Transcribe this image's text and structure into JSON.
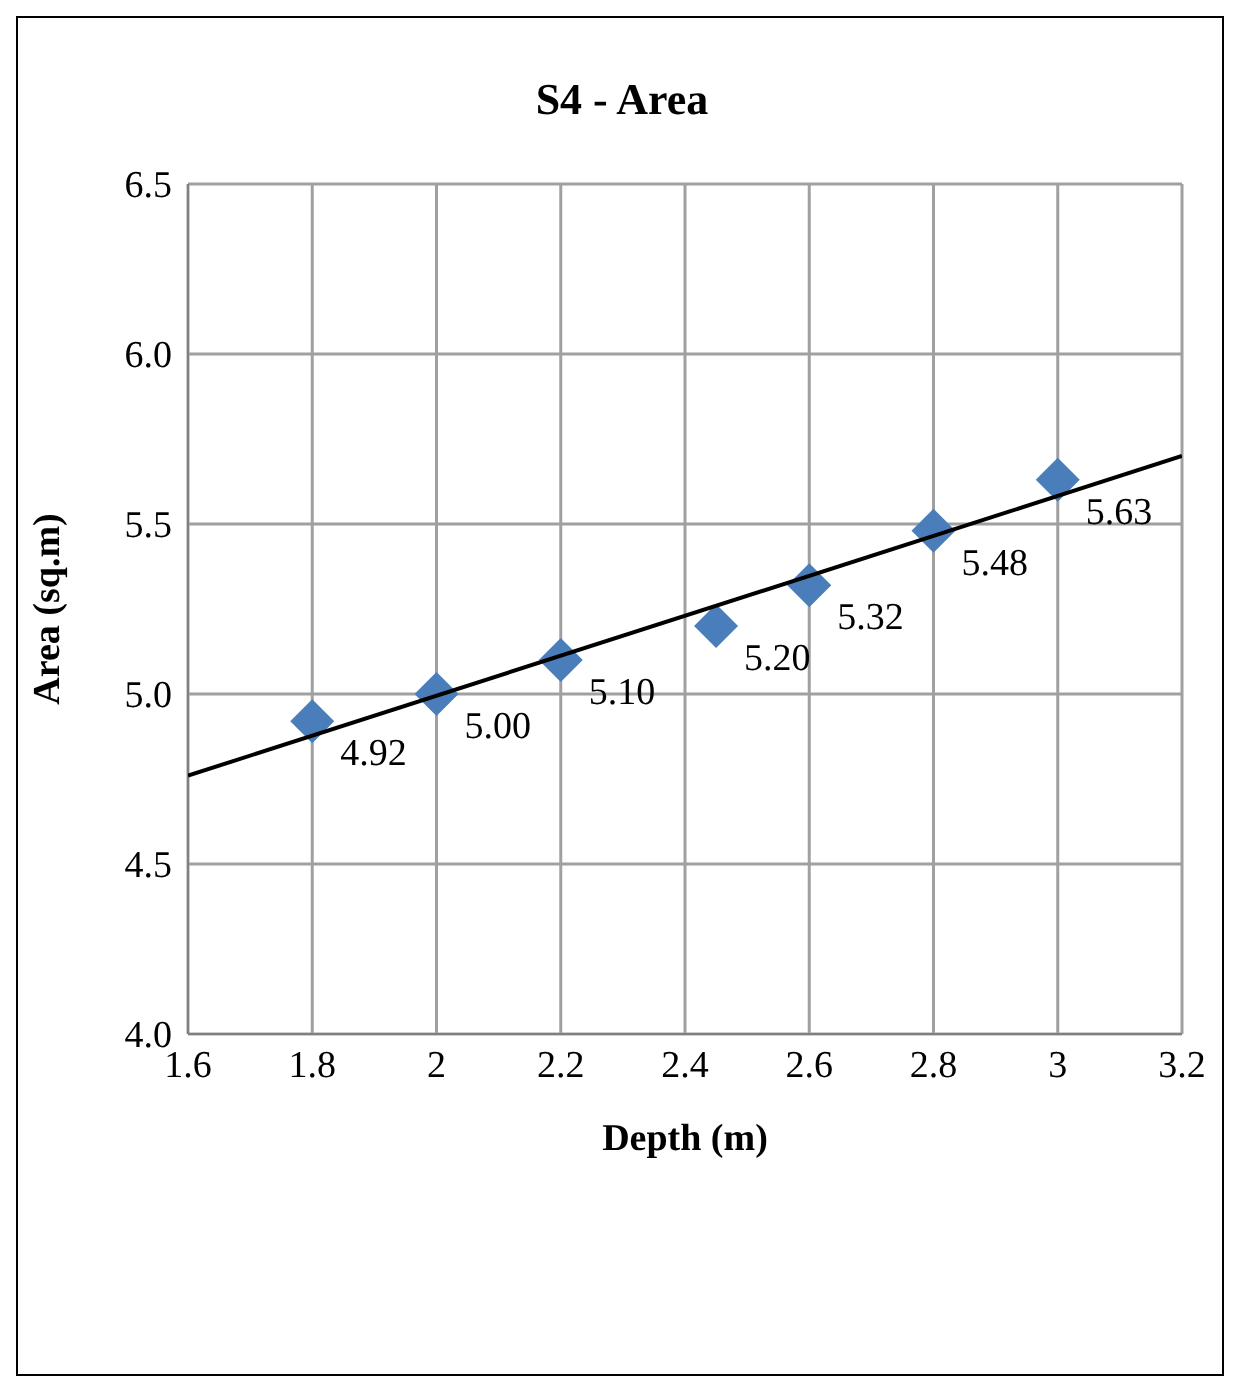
{
  "chart_data": {
    "type": "scatter",
    "title": "S4 - Area",
    "xlabel": "Depth (m)",
    "ylabel": "Area (sq.m)",
    "x": [
      1.8,
      2,
      2.2,
      2.45,
      2.6,
      2.8,
      3
    ],
    "marker": "diamond",
    "grid": true,
    "series": [
      {
        "color": "#4a7ebb",
        "values": [
          4.92,
          5.0,
          5.1,
          5.2,
          5.32,
          5.48,
          5.63
        ],
        "value_labels": [
          "4.92",
          "5.00",
          "5.10",
          "5.20",
          "5.32",
          "5.48",
          "5.63"
        ]
      },
      {
        "type": "line",
        "x": [
          1.6,
          3.2
        ],
        "values": [
          4.76,
          5.7
        ],
        "color": "#000000",
        "marker": "none"
      }
    ],
    "xlim": [
      1.6,
      3.2
    ],
    "xticks": [
      1.6,
      1.8,
      2,
      2.2,
      2.4,
      2.6,
      2.8,
      3,
      3.2
    ],
    "ylim": [
      4,
      6.5
    ],
    "yticks": [
      {
        "value": 4,
        "label": "4.0"
      },
      {
        "value": 4.5,
        "label": "4.5"
      },
      {
        "value": 5,
        "label": "5.0"
      },
      {
        "value": 5.5,
        "label": "5.5"
      },
      {
        "value": 6,
        "label": "6.0"
      },
      {
        "value": 6.5,
        "label": "6.5"
      }
    ]
  }
}
